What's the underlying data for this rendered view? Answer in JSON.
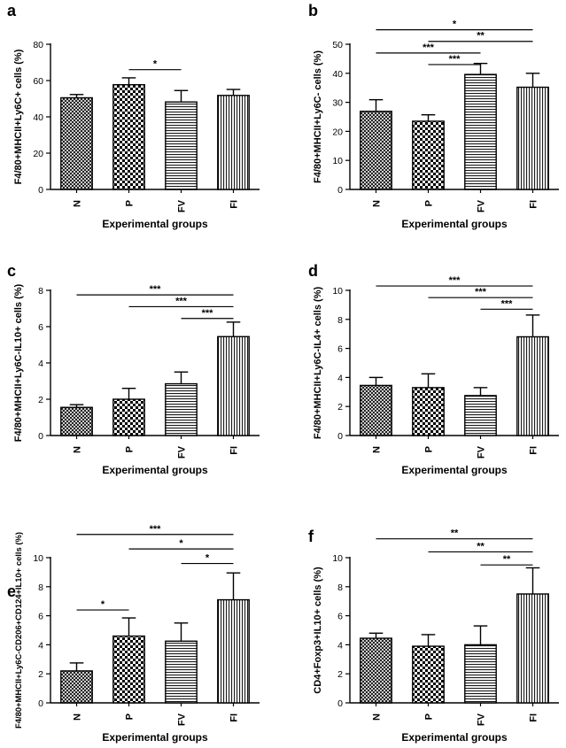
{
  "colors": {
    "ink": "#000000",
    "background": "#ffffff"
  },
  "chart_data": [
    {
      "panel": "a",
      "type": "bar",
      "categories": [
        "N",
        "P",
        "FV",
        "FI"
      ],
      "patterns": [
        "crosshatch",
        "checker",
        "horizontal",
        "vertical"
      ],
      "values": [
        50.5,
        57.7,
        48.2,
        51.8
      ],
      "errors": [
        1.8,
        3.8,
        6.3,
        3.3
      ],
      "ylim": [
        0,
        80
      ],
      "yticks": [
        "0",
        "20",
        "40",
        "60",
        "80"
      ],
      "ylabel": "F4/80+MHCII+Ly6C+ cells (%)",
      "xlabel": "Experimental groups",
      "significance": [
        {
          "from": 1,
          "to": 2,
          "label": "*",
          "y": 66
        }
      ]
    },
    {
      "panel": "b",
      "type": "bar",
      "categories": [
        "N",
        "P",
        "FV",
        "FI"
      ],
      "patterns": [
        "crosshatch",
        "checker",
        "horizontal",
        "vertical"
      ],
      "values": [
        26.9,
        23.5,
        39.6,
        35.2
      ],
      "errors": [
        4.0,
        2.2,
        3.8,
        4.8
      ],
      "ylim": [
        0,
        50
      ],
      "yticks": [
        "0",
        "10",
        "20",
        "30",
        "40",
        "50"
      ],
      "ylabel": "F4/80+MHCII+Ly6C- cells (%)",
      "xlabel": "Experimental groups",
      "significance": [
        {
          "from": 0,
          "to": 3,
          "label": "*",
          "y": 55
        },
        {
          "from": 1,
          "to": 3,
          "label": "**",
          "y": 51
        },
        {
          "from": 0,
          "to": 2,
          "label": "***",
          "y": 47
        },
        {
          "from": 1,
          "to": 2,
          "label": "***",
          "y": 43
        }
      ]
    },
    {
      "panel": "c",
      "type": "bar",
      "categories": [
        "N",
        "P",
        "FV",
        "FI"
      ],
      "patterns": [
        "crosshatch",
        "checker",
        "horizontal",
        "vertical"
      ],
      "values": [
        1.55,
        2.0,
        2.85,
        5.45
      ],
      "errors": [
        0.15,
        0.6,
        0.65,
        0.8
      ],
      "ylim": [
        0,
        8
      ],
      "yticks": [
        "0",
        "2",
        "4",
        "6",
        "8"
      ],
      "ylabel": "F4/80+MHCII+Ly6C-IL10+ cells (%)",
      "xlabel": "Experimental groups",
      "significance": [
        {
          "from": 0,
          "to": 3,
          "label": "***",
          "y": 7.75
        },
        {
          "from": 1,
          "to": 3,
          "label": "***",
          "y": 7.1
        },
        {
          "from": 2,
          "to": 3,
          "label": "***",
          "y": 6.45
        }
      ]
    },
    {
      "panel": "d",
      "type": "bar",
      "categories": [
        "N",
        "P",
        "FV",
        "FI"
      ],
      "patterns": [
        "crosshatch",
        "checker",
        "horizontal",
        "vertical"
      ],
      "values": [
        3.45,
        3.3,
        2.75,
        6.8
      ],
      "errors": [
        0.55,
        0.95,
        0.55,
        1.5
      ],
      "ylim": [
        0,
        10
      ],
      "yticks": [
        "0",
        "2",
        "4",
        "6",
        "8",
        "10"
      ],
      "ylabel": "F4/80+MHCII+Ly6C-IL4+ cells (%)",
      "xlabel": "Experimental groups",
      "significance": [
        {
          "from": 0,
          "to": 3,
          "label": "***",
          "y": 10.3
        },
        {
          "from": 1,
          "to": 3,
          "label": "***",
          "y": 9.5
        },
        {
          "from": 2,
          "to": 3,
          "label": "***",
          "y": 8.7
        }
      ]
    },
    {
      "panel": "e",
      "type": "bar",
      "categories": [
        "N",
        "P",
        "FV",
        "FI"
      ],
      "patterns": [
        "crosshatch",
        "checker",
        "horizontal",
        "vertical"
      ],
      "values": [
        2.2,
        4.6,
        4.25,
        7.1
      ],
      "errors": [
        0.55,
        1.25,
        1.25,
        1.85
      ],
      "ylim": [
        0,
        10
      ],
      "yticks": [
        "0",
        "2",
        "4",
        "6",
        "8",
        "10"
      ],
      "ylabel": "F4/80+MHCII+Ly6C-CD206+CD124+IL10+ cells (%)",
      "xlabel": "Experimental groups",
      "significance": [
        {
          "from": 0,
          "to": 3,
          "label": "***",
          "y": 11.6
        },
        {
          "from": 1,
          "to": 3,
          "label": "*",
          "y": 10.6
        },
        {
          "from": 2,
          "to": 3,
          "label": "*",
          "y": 9.6
        },
        {
          "from": 0,
          "to": 1,
          "label": "*",
          "y": 6.4
        }
      ]
    },
    {
      "panel": "f",
      "type": "bar",
      "categories": [
        "N",
        "P",
        "FV",
        "FI"
      ],
      "patterns": [
        "crosshatch",
        "checker",
        "horizontal",
        "vertical"
      ],
      "values": [
        4.45,
        3.9,
        4.0,
        7.5
      ],
      "errors": [
        0.35,
        0.8,
        1.3,
        1.8
      ],
      "ylim": [
        0,
        10
      ],
      "yticks": [
        "0",
        "2",
        "4",
        "6",
        "8",
        "10"
      ],
      "ylabel": "CD4+Foxp3+IL10+ cells (%)",
      "xlabel": "Experimental groups",
      "significance": [
        {
          "from": 0,
          "to": 3,
          "label": "**",
          "y": 11.3
        },
        {
          "from": 1,
          "to": 3,
          "label": "**",
          "y": 10.4
        },
        {
          "from": 2,
          "to": 3,
          "label": "**",
          "y": 9.5
        }
      ]
    }
  ]
}
